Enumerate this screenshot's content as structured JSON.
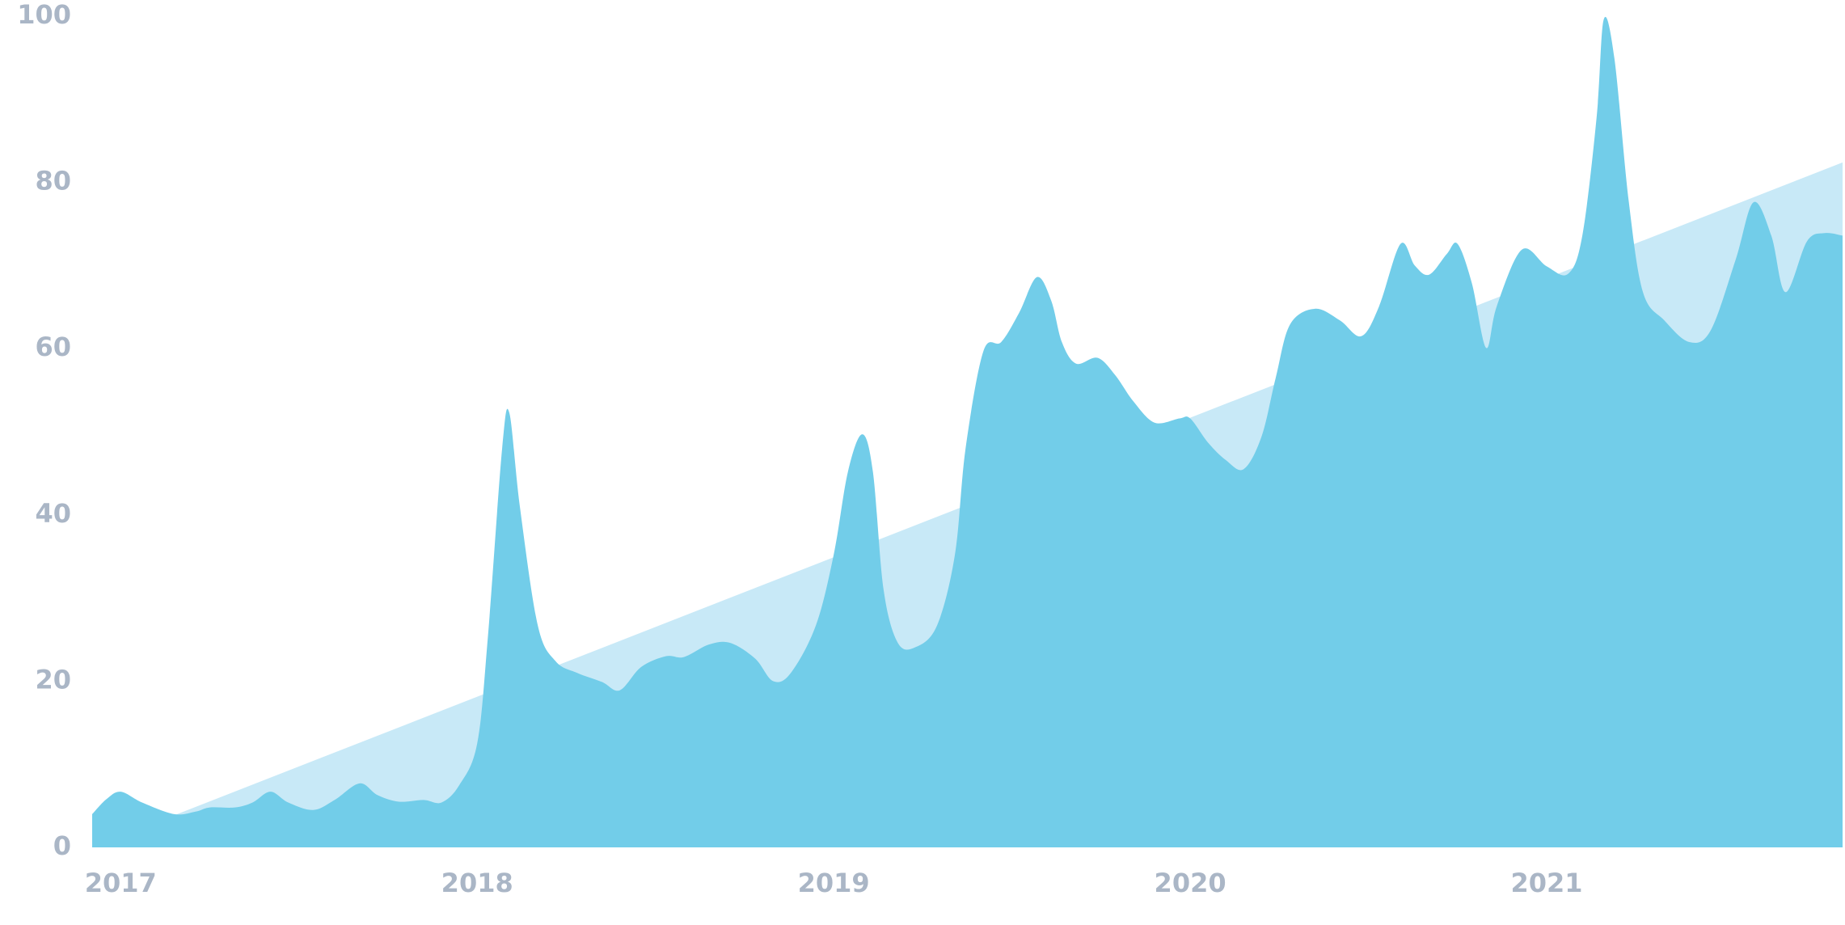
{
  "chart_data": {
    "type": "area",
    "x": [
      2016.92,
      2016.96,
      2017.0,
      2017.06,
      2017.15,
      2017.21,
      2017.25,
      2017.32,
      2017.37,
      2017.42,
      2017.47,
      2017.54,
      2017.6,
      2017.67,
      2017.72,
      2017.78,
      2017.85,
      2017.9,
      2017.95,
      2018.0,
      2018.03,
      2018.07,
      2018.09,
      2018.12,
      2018.17,
      2018.22,
      2018.28,
      2018.35,
      2018.4,
      2018.46,
      2018.53,
      2018.58,
      2018.65,
      2018.71,
      2018.78,
      2018.83,
      2018.88,
      2018.95,
      2019.0,
      2019.04,
      2019.08,
      2019.11,
      2019.14,
      2019.18,
      2019.23,
      2019.29,
      2019.34,
      2019.37,
      2019.42,
      2019.47,
      2019.52,
      2019.57,
      2019.61,
      2019.64,
      2019.68,
      2019.74,
      2019.79,
      2019.84,
      2019.9,
      2019.97,
      2020.0,
      2020.05,
      2020.1,
      2020.15,
      2020.2,
      2020.24,
      2020.28,
      2020.35,
      2020.42,
      2020.48,
      2020.53,
      2020.59,
      2020.63,
      2020.67,
      2020.72,
      2020.75,
      2020.79,
      2020.83,
      2020.86,
      2020.93,
      2021.0,
      2021.06,
      2021.1,
      2021.14,
      2021.16,
      2021.19,
      2021.23,
      2021.27,
      2021.33,
      2021.4,
      2021.46,
      2021.53,
      2021.58,
      2021.63,
      2021.67,
      2021.73,
      2021.78,
      2021.83
    ],
    "series": [
      {
        "color": "#c8e9f7",
        "x": [
          2016.92,
          2021.83
        ],
        "values": [
          0,
          82.4
        ]
      },
      {
        "color": "#72cde9",
        "values": [
          4.0,
          5.8,
          6.7,
          5.4,
          4.0,
          4.3,
          4.8,
          4.8,
          5.4,
          6.7,
          5.4,
          4.5,
          5.7,
          7.7,
          6.3,
          5.5,
          5.7,
          5.4,
          7.5,
          12.5,
          25.3,
          48,
          52.3,
          40.9,
          26.7,
          22.4,
          21,
          19.9,
          18.9,
          21.7,
          23,
          22.9,
          24.4,
          24.6,
          22.7,
          20,
          21,
          26.7,
          35.2,
          45.2,
          49.7,
          45.2,
          31,
          24.6,
          24.1,
          26.7,
          35.2,
          48,
          59.7,
          60.8,
          64.3,
          68.6,
          65.8,
          60.8,
          58.2,
          58.9,
          56.8,
          53.7,
          51.1,
          51.6,
          51.6,
          48.7,
          46.6,
          45.5,
          49.4,
          56.5,
          62.9,
          64.8,
          63.4,
          61.5,
          65.1,
          72.6,
          70,
          68.9,
          71.4,
          72.6,
          67.9,
          60.1,
          65.1,
          71.9,
          69.9,
          69,
          73.6,
          87.8,
          99.6,
          94.9,
          77.8,
          66.8,
          63.4,
          60.8,
          62.2,
          70.7,
          77.6,
          73.6,
          66.8,
          72.9,
          73.9,
          73.6
        ]
      }
    ],
    "xlim": [
      2016.92,
      2021.83
    ],
    "xticks": [
      2017,
      2018,
      2019,
      2020,
      2021
    ],
    "ylim": [
      0,
      100
    ],
    "yticks": [
      0,
      20,
      40,
      60,
      80,
      100
    ]
  }
}
